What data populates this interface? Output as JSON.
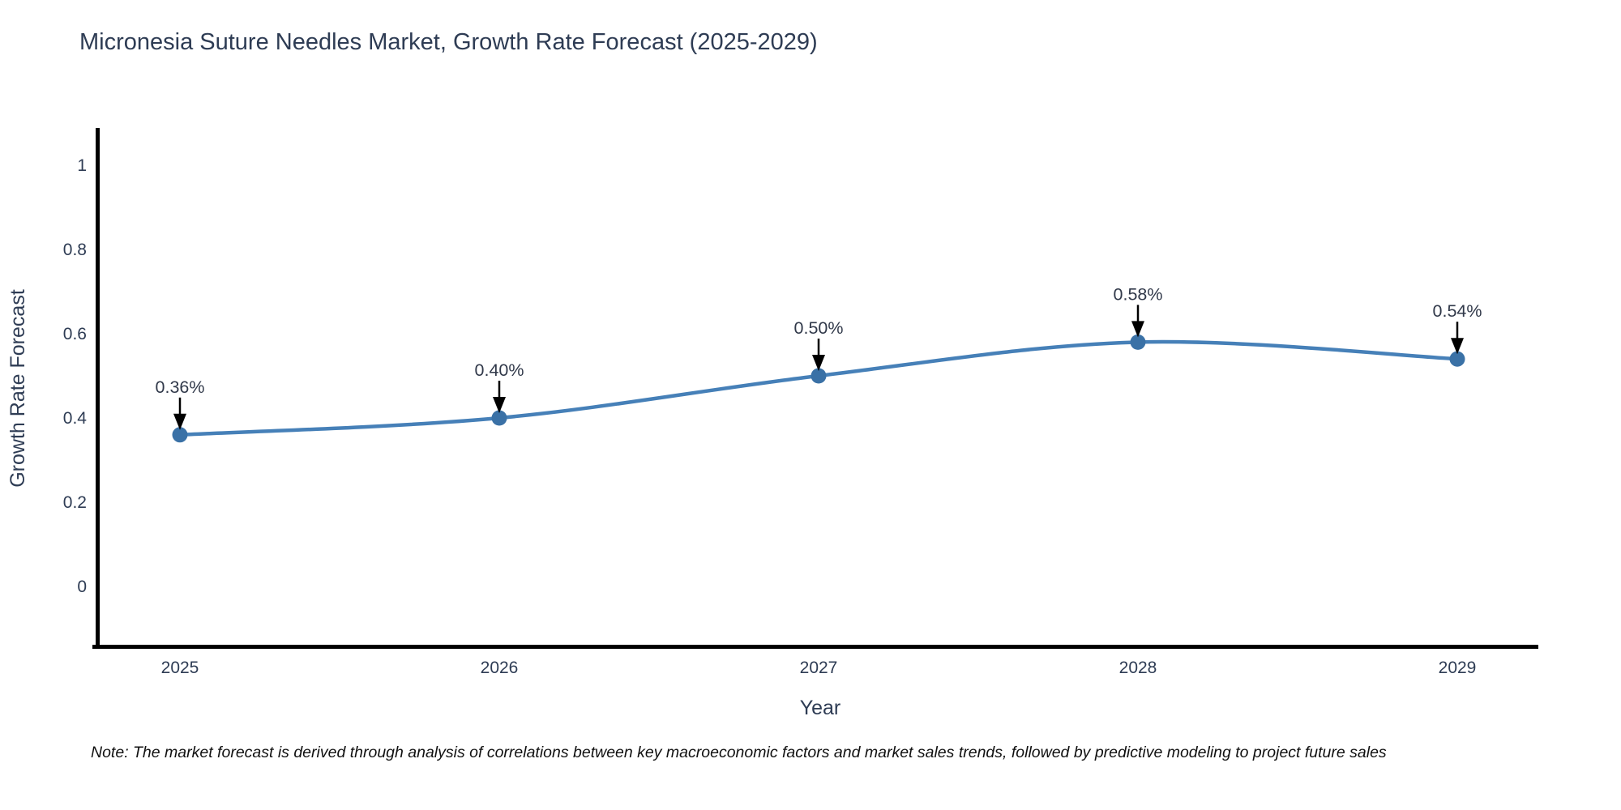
{
  "title": "Micronesia Suture Needles Market, Growth Rate Forecast (2025-2029)",
  "note": "Note: The market forecast is derived through analysis of correlations between key macroeconomic factors and market sales trends, followed by predictive modeling to project future sales",
  "chart_data": {
    "type": "line",
    "title": "Micronesia Suture Needles Market, Growth Rate Forecast (2025-2029)",
    "x": [
      2025,
      2026,
      2027,
      2028,
      2029
    ],
    "series": [
      {
        "name": "Growth Rate Forecast",
        "values": [
          0.36,
          0.4,
          0.5,
          0.58,
          0.54
        ]
      }
    ],
    "point_labels": [
      "0.36%",
      "0.40%",
      "0.50%",
      "0.58%",
      "0.54%"
    ],
    "xlabel": "Year",
    "ylabel": "Growth Rate Forecast",
    "ylim": [
      0,
      1
    ],
    "yticks": [
      0,
      0.2,
      0.4,
      0.6,
      0.8,
      1
    ],
    "ytick_labels": [
      "0",
      "0.2",
      "0.4",
      "0.6",
      "0.8",
      "1"
    ],
    "xtick_labels": [
      "2025",
      "2026",
      "2027",
      "2028",
      "2029"
    ],
    "grid": false,
    "legend_position": "none",
    "line_shape": "spline",
    "colors": {
      "line": "#4680b8",
      "marker": "#3a71a6",
      "arrow": "#000000",
      "text": "#2e3c54",
      "axis": "#000000",
      "note_text": "#111111",
      "background": "#ffffff"
    }
  }
}
